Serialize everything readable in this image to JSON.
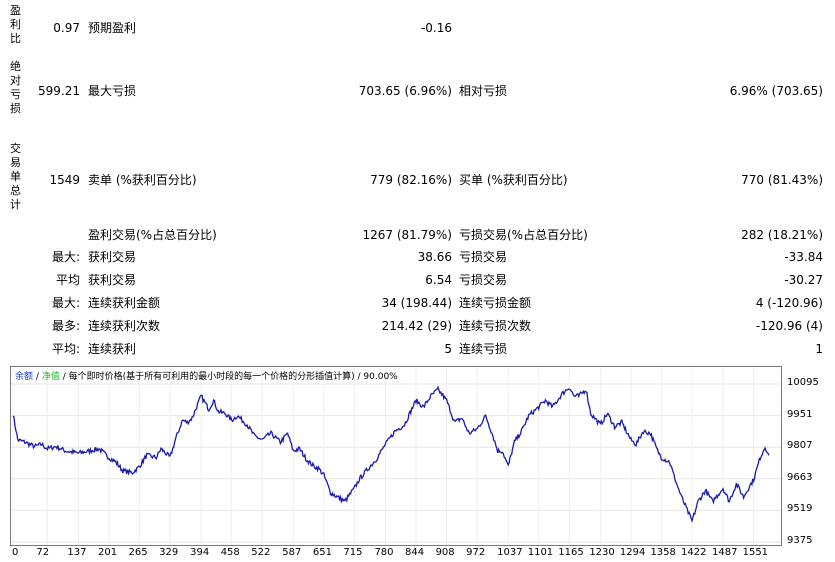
{
  "report": {
    "profit_factor": {
      "label_vertical": "盈利比",
      "value": "0.97",
      "label2": "预期盈利",
      "value2": "-0.16"
    },
    "drawdown": {
      "label_vertical": "绝对亏损",
      "value": "599.21",
      "label2": "最大亏损",
      "value2": "703.65 (6.96%)",
      "label3": "相对亏损",
      "value3": "6.96% (703.65)"
    },
    "trades": {
      "label_vertical": "交易单总计",
      "value": "1549",
      "label2": "卖单 (%获利百分比)",
      "value2": "779 (82.16%)",
      "label3": "买单 (%获利百分比)",
      "value3": "770 (81.43%)"
    },
    "rows": [
      {
        "prefix": "",
        "label": "盈利交易(%占总百分比)",
        "value": "1267 (81.79%)",
        "label2": "亏损交易(%占总百分比)",
        "value2": "282 (18.21%)"
      },
      {
        "prefix": "最大:",
        "label": "获利交易",
        "value": "38.66",
        "label2": "亏损交易",
        "value2": "-33.84"
      },
      {
        "prefix": "平均",
        "label": "获利交易",
        "value": "6.54",
        "label2": "亏损交易",
        "value2": "-30.27"
      },
      {
        "prefix": "最大:",
        "label": "连续获利金额",
        "value": "34 (198.44)",
        "label2": "连续亏损金额",
        "value2": "4 (-120.96)"
      },
      {
        "prefix": "最多:",
        "label": "连续获利次数",
        "value": "214.42 (29)",
        "label2": "连续亏损次数",
        "value2": "-120.96 (4)"
      },
      {
        "prefix": "平均:",
        "label": "连续获利",
        "value": "5",
        "label2": "连续亏损",
        "value2": "1"
      }
    ]
  },
  "chart_data": {
    "type": "line",
    "legend": {
      "balance": "余额",
      "equity": "净值",
      "note": "每个即时价格(基于所有可利用的最小时段的每一个价格的分形插值计算)",
      "quality": "90.00%"
    },
    "colors": {
      "line": "#1a1aa8",
      "legend_balance": "#1a3fd6",
      "legend_equity": "#2bb52b"
    },
    "x_ticks": [
      "0",
      "72",
      "137",
      "201",
      "265",
      "329",
      "394",
      "458",
      "522",
      "587",
      "651",
      "715",
      "780",
      "844",
      "908",
      "972",
      "1037",
      "1101",
      "1165",
      "1230",
      "1294",
      "1358",
      "1422",
      "1487",
      "1551"
    ],
    "y_ticks": [
      "10095",
      "9951",
      "9807",
      "9663",
      "9519",
      "9375"
    ],
    "ylim": [
      9375,
      10095
    ],
    "xlim": [
      0,
      1600
    ],
    "series": [
      {
        "x": [
          0,
          10,
          25,
          45,
          60,
          72,
          90,
          110,
          137,
          160,
          180,
          201,
          215,
          230,
          250,
          265,
          280,
          300,
          310,
          329,
          340,
          355,
          365,
          375,
          394,
          410,
          420,
          430,
          445,
          458,
          470,
          490,
          505,
          522,
          540,
          560,
          575,
          587,
          600,
          615,
          630,
          640,
          651,
          665,
          680,
          695,
          705,
          715,
          725,
          740,
          760,
          780,
          800,
          820,
          835,
          844,
          860,
          875,
          890,
          908,
          925,
          940,
          955,
          972,
          990,
          1005,
          1015,
          1025,
          1037,
          1050,
          1065,
          1080,
          1101,
          1115,
          1130,
          1150,
          1165,
          1175,
          1185,
          1200,
          1210,
          1230,
          1245,
          1260,
          1275,
          1294,
          1305,
          1320,
          1335,
          1350,
          1358,
          1375,
          1390,
          1400,
          1410,
          1422,
          1435,
          1450,
          1465,
          1487,
          1500,
          1515,
          1530,
          1540,
          1551,
          1565,
          1575,
          1583
        ],
        "y": [
          9960,
          9840,
          9830,
          9810,
          9820,
          9800,
          9810,
          9790,
          9780,
          9790,
          9800,
          9760,
          9740,
          9700,
          9690,
          9720,
          9770,
          9760,
          9800,
          9760,
          9840,
          9930,
          9920,
          9940,
          10040,
          9980,
          10020,
          9970,
          9960,
          9930,
          9950,
          9910,
          9860,
          9840,
          9870,
          9830,
          9870,
          9790,
          9800,
          9750,
          9720,
          9710,
          9680,
          9600,
          9580,
          9560,
          9590,
          9620,
          9660,
          9700,
          9750,
          9820,
          9880,
          9910,
          9980,
          10020,
          9990,
          10040,
          10070,
          10020,
          9920,
          9940,
          9870,
          9890,
          9950,
          9860,
          9790,
          9790,
          9720,
          9830,
          9880,
          9950,
          9990,
          10020,
          9990,
          10050,
          10080,
          10040,
          10040,
          10070,
          9960,
          9910,
          9960,
          9900,
          9920,
          9840,
          9820,
          9880,
          9870,
          9790,
          9760,
          9740,
          9640,
          9580,
          9530,
          9470,
          9560,
          9610,
          9560,
          9620,
          9560,
          9640,
          9580,
          9620,
          9660,
          9760,
          9810,
          9770
        ]
      }
    ]
  }
}
